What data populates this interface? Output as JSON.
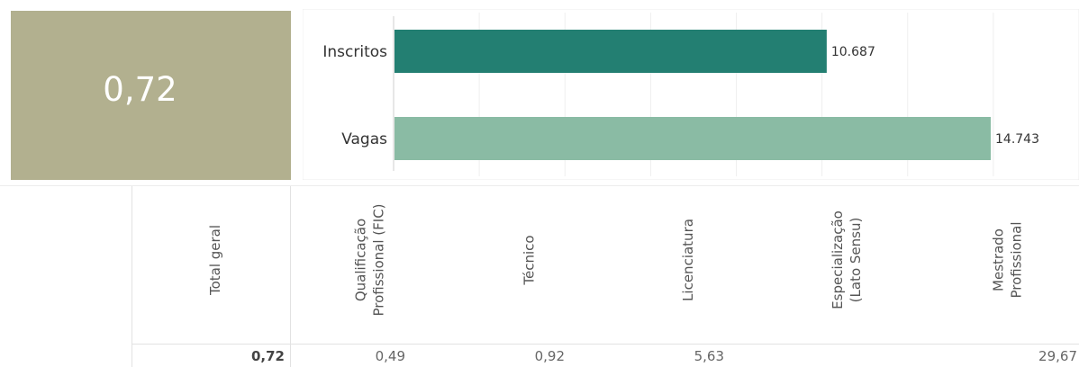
{
  "kpi": {
    "value": "0,72",
    "bg_color": "#b2b08f",
    "text_color": "#ffffff"
  },
  "chart_data": {
    "type": "bar",
    "orientation": "horizontal",
    "categories": [
      "Inscritos",
      "Vagas"
    ],
    "values": [
      10687,
      14743
    ],
    "value_labels": [
      "10.687",
      "14.743"
    ],
    "colors": [
      "#237f72",
      "#8abba4"
    ],
    "xlim": [
      0,
      16000
    ],
    "grid": true
  },
  "table": {
    "columns": [
      {
        "header": [
          "Total geral"
        ],
        "value": "0,72",
        "bold": true
      },
      {
        "header": [
          "Qualificação",
          "Profissional (FIC)"
        ],
        "value": "0,49"
      },
      {
        "header": [
          "Técnico"
        ],
        "value": "0,92"
      },
      {
        "header": [
          "Licenciatura"
        ],
        "value": "5,63"
      },
      {
        "header": [
          "Especialização",
          "(Lato Sensu)"
        ],
        "value": ""
      },
      {
        "header": [
          "Mestrado",
          "Profissional"
        ],
        "value": "29,67"
      }
    ]
  }
}
